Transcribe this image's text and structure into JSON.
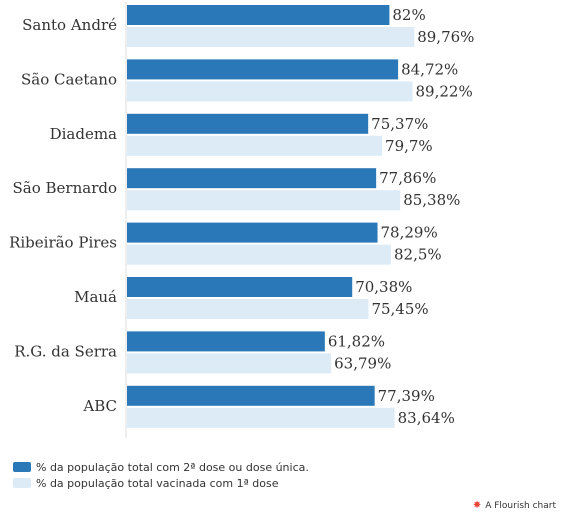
{
  "chart_data": {
    "type": "bar",
    "orientation": "horizontal",
    "categories": [
      "Santo André",
      "São Caetano",
      "Diadema",
      "São Bernardo",
      "Ribeirão Pires",
      "Mauá",
      "R.G. da Serra",
      "ABC"
    ],
    "series": [
      {
        "name": "% da população total com 2ª dose ou dose única.",
        "color": "#2a78b8",
        "values": [
          82,
          84.72,
          75.37,
          77.86,
          78.29,
          70.38,
          61.82,
          77.39
        ],
        "labels": [
          "82%",
          "84,72%",
          "75,37%",
          "77,86%",
          "78,29%",
          "70,38%",
          "61,82%",
          "77,39%"
        ]
      },
      {
        "name": "% da população total vacinada com 1ª dose",
        "color": "#dcebf5",
        "values": [
          89.76,
          89.22,
          79.7,
          85.38,
          82.5,
          75.45,
          63.79,
          83.64
        ],
        "labels": [
          "89,76%",
          "89,22%",
          "79,7%",
          "85,38%",
          "82,5%",
          "75,45%",
          "63,79%",
          "83,64%"
        ]
      }
    ],
    "xlim": [
      0,
      100
    ],
    "legend_position": "bottom-left",
    "grid": false
  },
  "credit": {
    "text": "A Flourish chart",
    "icon": "flourish-star-icon",
    "icon_color": "#e8473a"
  }
}
